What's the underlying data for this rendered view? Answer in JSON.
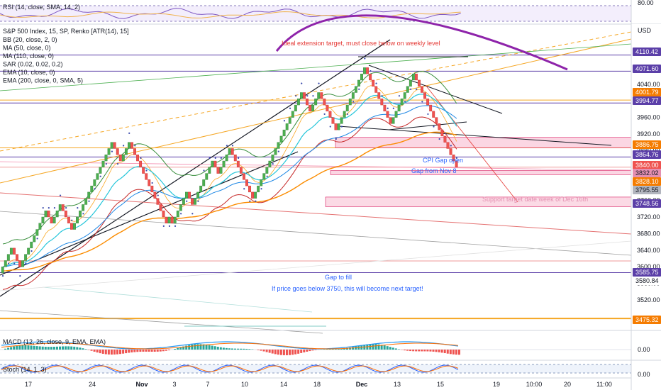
{
  "chart_data": {
    "type": "candlestick",
    "symbol_title": "S&P 500 Index, 15, SP, Renko [ATR(14), 15]",
    "indicators": [
      "BB (20, close, 2, 0)",
      "MA (50, close, 0)",
      "MA (110, close, 0)",
      "SAR (0.02, 0.02, 0.2)",
      "EMA (10, close, 0)",
      "EMA (200, close, 0, SMA, 5)"
    ],
    "rsi_title": "RSI (14, close, SMA, 14, 2)",
    "rsi_level": "80.00",
    "macd_title": "MACD (12, 26, close, 9, EMA, EMA)",
    "macd_level": "0.00",
    "stoch_title": "Stoch (14, 1, 3)",
    "stoch_level": "0.00",
    "currency": "USD",
    "y_ticks": [
      "4120.00",
      "4080.00",
      "4040.00",
      "4000.00",
      "3960.00",
      "3920.00",
      "3880.00",
      "3840.00",
      "3800.00",
      "3760.00",
      "3720.00",
      "3680.00",
      "3640.00",
      "3600.00",
      "3560.00",
      "3520.00"
    ],
    "ylim": [
      3440,
      4160
    ],
    "x_ticks": [
      "17",
      "24",
      "Nov",
      "3",
      "7",
      "10",
      "14",
      "18",
      "Dec",
      "13",
      "15",
      "19",
      "10:00",
      "20",
      "11:00"
    ],
    "price_tags": [
      {
        "value": "4110.42",
        "color": "#5b3fa8"
      },
      {
        "value": "4071.60",
        "color": "#5b3fa8"
      },
      {
        "value": "4001.79",
        "color": "#f57c00"
      },
      {
        "value": "3994.77",
        "color": "#5b3fa8"
      },
      {
        "value": "3886.75",
        "color": "#f57c00"
      },
      {
        "value": "3864.76",
        "color": "#5b3fa8"
      },
      {
        "value": "3840.00",
        "color": "#ef5350"
      },
      {
        "value": "3832.02",
        "color": "#e48fb1"
      },
      {
        "value": "3828.10",
        "color": "#f57c00"
      },
      {
        "value": "3795.55",
        "color": "#b2b5be"
      },
      {
        "value": "3748.56",
        "color": "#5b3fa8"
      },
      {
        "value": "3585.75",
        "color": "#5b3fa8"
      },
      {
        "value": "3580.84",
        "color": "#ffffff"
      },
      {
        "value": "3475.32",
        "color": "#f57c00"
      }
    ],
    "annotations": [
      {
        "text": "Ideal extension target, must close below on weekly level",
        "color": "#e53935"
      },
      {
        "text": "CPI Gap open",
        "color": "#2962ff"
      },
      {
        "text": "Gap from Nov 8",
        "color": "#2962ff"
      },
      {
        "text": "Support target date week of Dec 16th",
        "color": "#e48fb1"
      },
      {
        "text": "Gap to fill",
        "color": "#2962ff"
      },
      {
        "text": "If price goes below 3750, this will become next target!",
        "color": "#2962ff"
      }
    ],
    "renko_closes": [
      3600,
      3615,
      3630,
      3645,
      3630,
      3615,
      3600,
      3615,
      3630,
      3645,
      3660,
      3675,
      3690,
      3705,
      3720,
      3735,
      3720,
      3705,
      3720,
      3735,
      3750,
      3735,
      3720,
      3705,
      3690,
      3705,
      3720,
      3735,
      3750,
      3765,
      3780,
      3795,
      3810,
      3825,
      3840,
      3855,
      3870,
      3885,
      3900,
      3885,
      3870,
      3855,
      3870,
      3885,
      3900,
      3885,
      3870,
      3855,
      3840,
      3825,
      3810,
      3795,
      3780,
      3765,
      3750,
      3735,
      3720,
      3705,
      3720,
      3705,
      3720,
      3735,
      3750,
      3765,
      3780,
      3765,
      3750,
      3765,
      3780,
      3795,
      3810,
      3825,
      3840,
      3855,
      3840,
      3825,
      3840,
      3855,
      3870,
      3885,
      3870,
      3855,
      3840,
      3825,
      3810,
      3795,
      3780,
      3765,
      3780,
      3795,
      3810,
      3825,
      3840,
      3855,
      3870,
      3885,
      3900,
      3915,
      3930,
      3945,
      3960,
      3975,
      3990,
      4005,
      4020,
      4005,
      3990,
      3975,
      3990,
      4005,
      4020,
      4005,
      3990,
      3975,
      3960,
      3945,
      3930,
      3945,
      3960,
      3975,
      3990,
      4005,
      4020,
      4035,
      4050,
      4065,
      4080,
      4065,
      4050,
      4035,
      4020,
      4005,
      3990,
      3975,
      3960,
      3945,
      3960,
      3975,
      3990,
      4005,
      4020,
      4035,
      4050,
      4065,
      4050,
      4035,
      4020,
      4005,
      3990,
      3975,
      3960,
      3945,
      3930,
      3915,
      3900,
      3885,
      3870,
      3855,
      3840
    ]
  }
}
